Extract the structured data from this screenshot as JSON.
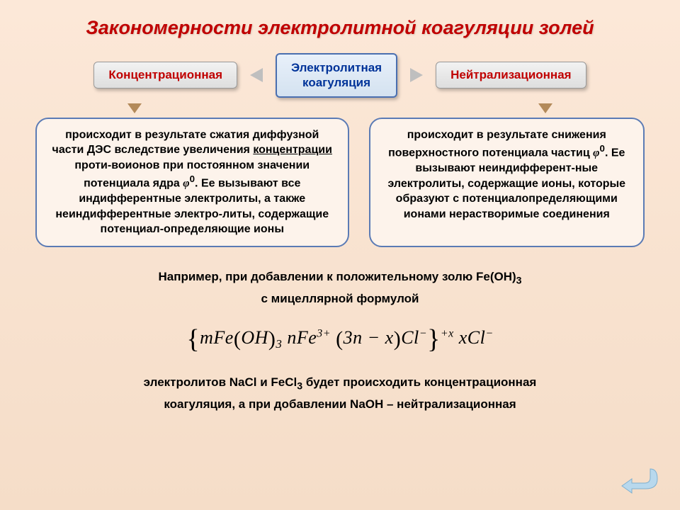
{
  "title": "Закономерности электролитной коагуляции золей",
  "badges": {
    "left": "Концентрационная",
    "center": "Электролитная\nкоагуляция",
    "right": "Нейтрализационная"
  },
  "boxes": {
    "left_html": "происходит в результате сжатия диффузной части ДЭС вследствие увеличения <span class='underline'>концентрации</span> проти-воионов при постоянном значении потенциала ядра <span class='phi'>φ</span><sup>0</sup>. Ее вызывают все индифферентные электролиты, а также неиндифферентные электро-литы, содержащие потенциал-определяющие ионы",
    "right_html": "происходит в результате снижения поверхностного потенциала частиц <span class='phi'>φ</span><sup>0</sup>. Ее вызывают неиндифферент-ные электролиты, содержащие ионы, которые образуют с потенциалопределяющими ионами нерастворимые соединения"
  },
  "example": {
    "line1": "Например, при добавлении к положительному золю Fe(OH)<sub>3</sub>",
    "line2": "с мицеллярной формулой",
    "formula": "<span class='brace'>{</span><i>m</i>Fe<span class='paren'>(</span>OH<span class='paren'>)</span><sub>3</sub> <i>n</i>Fe<sup>3+</sup> <span class='paren'>(</span>3<i>n</i> − <i>x</i><span class='paren'>)</span>Cl<sup>−</sup><span class='brace'>}</span><sup>+<i>x</i></sup> <i>x</i>Cl<sup>−</sup>",
    "line3": "электролитов NaCl и FeCl<sub>3</sub> будет происходить концентрационная",
    "line4": "коагуляция, а при добавлении NaOH – нейтрализационная"
  },
  "colors": {
    "title": "#c00000",
    "badge_red": "#c00000",
    "badge_blue": "#003399",
    "box_border": "#5b7bb5",
    "bg_top": "#fce8d8",
    "bg_bottom": "#f5ddc8",
    "arrow_gray": "#bfbfbf",
    "arrow_brown": "#b38a5a",
    "back_arrow": "#9cc7e6"
  }
}
